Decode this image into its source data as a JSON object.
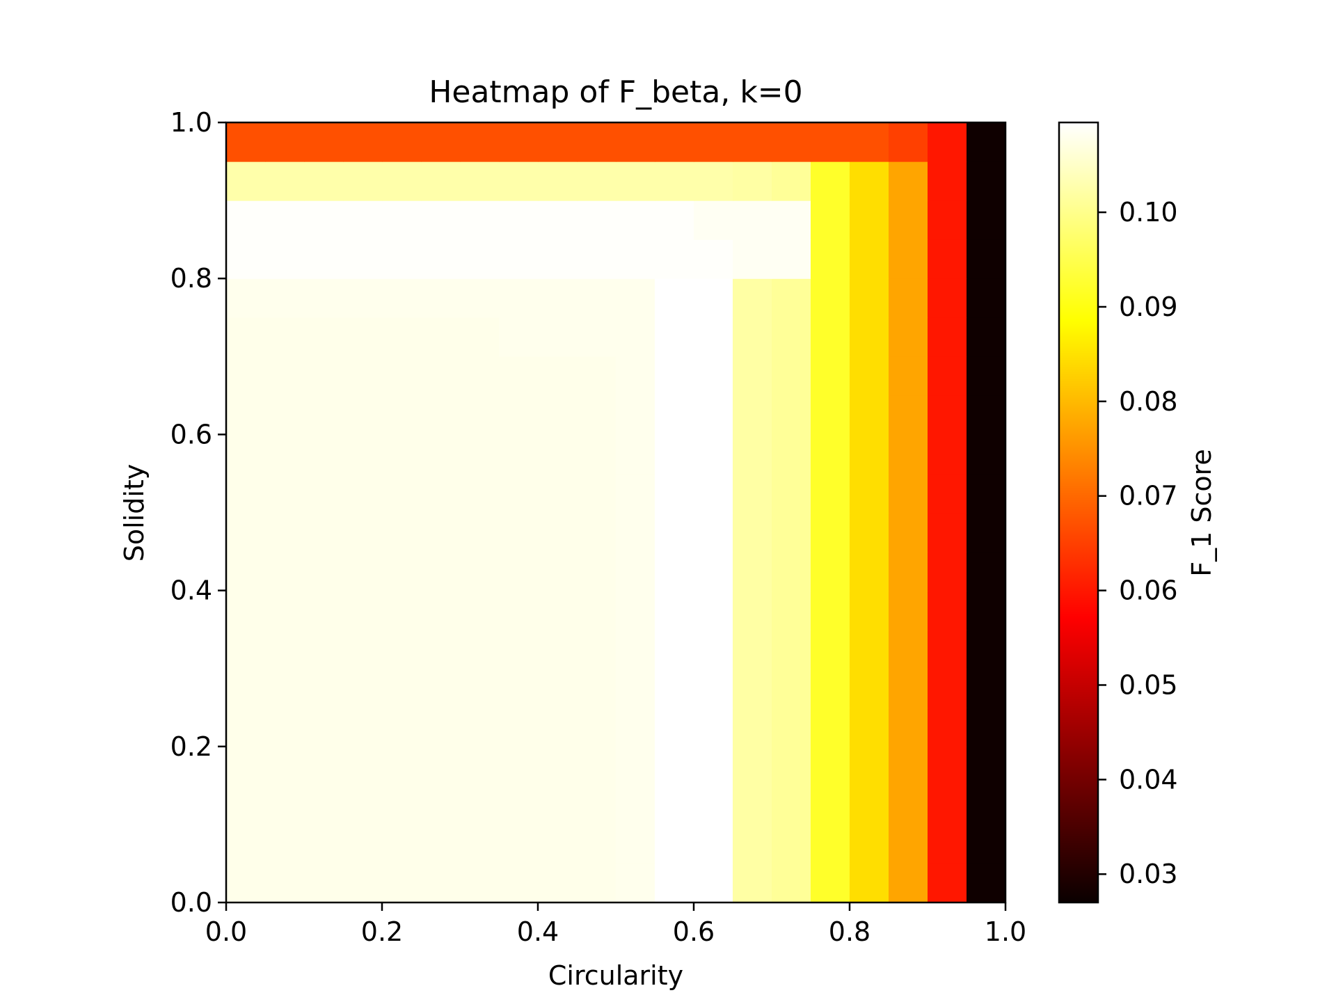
{
  "chart_data": {
    "type": "heatmap",
    "title": "Heatmap of F_beta, k=0",
    "xlabel": "Circularity",
    "ylabel": "Solidity",
    "colorbar_label": "F_1 Score",
    "colormap": "hot",
    "xlim": [
      0,
      1
    ],
    "ylim": [
      0,
      1
    ],
    "clim": [
      0.027,
      0.1095
    ],
    "x_edges": [
      0,
      0.05,
      0.1,
      0.15,
      0.2,
      0.25,
      0.3,
      0.35,
      0.4,
      0.45,
      0.5,
      0.55,
      0.6,
      0.65,
      0.7,
      0.75,
      0.8,
      0.85,
      0.9,
      0.95,
      1.0
    ],
    "y_edges": [
      0,
      0.05,
      0.1,
      0.15,
      0.2,
      0.25,
      0.3,
      0.35,
      0.4,
      0.45,
      0.5,
      0.55,
      0.6,
      0.65,
      0.7,
      0.75,
      0.8,
      0.85,
      0.9,
      0.95,
      1.0
    ],
    "x_ticks": [
      "0.0",
      "0.2",
      "0.4",
      "0.6",
      "0.8",
      "1.0"
    ],
    "y_ticks": [
      "0.0",
      "0.2",
      "0.4",
      "0.6",
      "0.8",
      "1.0"
    ],
    "colorbar_ticks": [
      "0.03",
      "0.04",
      "0.05",
      "0.06",
      "0.07",
      "0.08",
      "0.09",
      "0.10"
    ],
    "values": [
      [
        0.1078,
        0.1078,
        0.1078,
        0.1078,
        0.1078,
        0.1078,
        0.1078,
        0.1078,
        0.1078,
        0.1078,
        0.108,
        0.1095,
        0.1095,
        0.102,
        0.101,
        0.092,
        0.0845,
        0.0775,
        0.06,
        0.0275
      ],
      [
        0.1078,
        0.1078,
        0.1078,
        0.1078,
        0.1078,
        0.1078,
        0.1078,
        0.1078,
        0.1078,
        0.1078,
        0.108,
        0.1095,
        0.1095,
        0.102,
        0.101,
        0.092,
        0.0845,
        0.0775,
        0.06,
        0.0275
      ],
      [
        0.1078,
        0.1078,
        0.1078,
        0.1078,
        0.1078,
        0.1078,
        0.1078,
        0.1078,
        0.1078,
        0.1078,
        0.108,
        0.1095,
        0.1095,
        0.102,
        0.101,
        0.092,
        0.0845,
        0.0775,
        0.06,
        0.0275
      ],
      [
        0.1078,
        0.1078,
        0.1078,
        0.1078,
        0.1078,
        0.1078,
        0.1078,
        0.1078,
        0.1078,
        0.1078,
        0.108,
        0.1095,
        0.1095,
        0.102,
        0.101,
        0.092,
        0.0845,
        0.0775,
        0.06,
        0.0275
      ],
      [
        0.1078,
        0.1078,
        0.1078,
        0.1078,
        0.1078,
        0.1078,
        0.1078,
        0.1078,
        0.1078,
        0.1078,
        0.108,
        0.1095,
        0.1095,
        0.102,
        0.101,
        0.092,
        0.0845,
        0.0775,
        0.06,
        0.0275
      ],
      [
        0.1078,
        0.1078,
        0.1078,
        0.1078,
        0.1078,
        0.1078,
        0.1078,
        0.1078,
        0.1078,
        0.1078,
        0.108,
        0.1095,
        0.1095,
        0.102,
        0.101,
        0.092,
        0.0845,
        0.0775,
        0.06,
        0.0275
      ],
      [
        0.1078,
        0.1078,
        0.1078,
        0.1078,
        0.1078,
        0.1078,
        0.1078,
        0.1078,
        0.1078,
        0.1078,
        0.108,
        0.1095,
        0.1095,
        0.102,
        0.101,
        0.092,
        0.0845,
        0.0775,
        0.06,
        0.0275
      ],
      [
        0.1078,
        0.1078,
        0.1078,
        0.1078,
        0.1078,
        0.1078,
        0.1078,
        0.1078,
        0.1078,
        0.1078,
        0.108,
        0.1095,
        0.1095,
        0.102,
        0.101,
        0.092,
        0.0845,
        0.0775,
        0.06,
        0.0275
      ],
      [
        0.1078,
        0.1078,
        0.1078,
        0.1078,
        0.1078,
        0.1078,
        0.1078,
        0.1078,
        0.1078,
        0.1078,
        0.108,
        0.1095,
        0.1095,
        0.102,
        0.101,
        0.092,
        0.0845,
        0.0775,
        0.06,
        0.0275
      ],
      [
        0.1078,
        0.1078,
        0.1078,
        0.1078,
        0.1078,
        0.1078,
        0.1078,
        0.1078,
        0.1078,
        0.1078,
        0.108,
        0.1095,
        0.1095,
        0.102,
        0.101,
        0.092,
        0.0845,
        0.0775,
        0.06,
        0.0275
      ],
      [
        0.1078,
        0.1078,
        0.1078,
        0.1078,
        0.1078,
        0.1078,
        0.1078,
        0.1078,
        0.1078,
        0.1078,
        0.108,
        0.1095,
        0.1095,
        0.102,
        0.101,
        0.092,
        0.0845,
        0.0775,
        0.06,
        0.0275
      ],
      [
        0.1078,
        0.1078,
        0.1078,
        0.1078,
        0.1078,
        0.1078,
        0.1078,
        0.1078,
        0.1078,
        0.1078,
        0.108,
        0.1095,
        0.1095,
        0.102,
        0.101,
        0.092,
        0.0845,
        0.0775,
        0.06,
        0.0275
      ],
      [
        0.1078,
        0.1078,
        0.1078,
        0.1078,
        0.1078,
        0.1078,
        0.1078,
        0.1078,
        0.1078,
        0.1078,
        0.108,
        0.1095,
        0.1095,
        0.102,
        0.101,
        0.092,
        0.0845,
        0.0775,
        0.06,
        0.0275
      ],
      [
        0.1078,
        0.1078,
        0.1078,
        0.1078,
        0.1078,
        0.1078,
        0.1078,
        0.1078,
        0.1078,
        0.1078,
        0.108,
        0.1095,
        0.1095,
        0.102,
        0.101,
        0.092,
        0.0845,
        0.0775,
        0.06,
        0.0275
      ],
      [
        0.1078,
        0.1078,
        0.1078,
        0.1078,
        0.1078,
        0.1078,
        0.1078,
        0.108,
        0.108,
        0.108,
        0.108,
        0.1095,
        0.1095,
        0.102,
        0.101,
        0.092,
        0.0845,
        0.0775,
        0.06,
        0.0275
      ],
      [
        0.108,
        0.108,
        0.108,
        0.108,
        0.108,
        0.108,
        0.108,
        0.108,
        0.108,
        0.108,
        0.108,
        0.1095,
        0.1095,
        0.102,
        0.101,
        0.092,
        0.0845,
        0.0775,
        0.06,
        0.0275
      ],
      [
        0.1092,
        0.1092,
        0.1092,
        0.1092,
        0.1092,
        0.1092,
        0.1092,
        0.1092,
        0.1092,
        0.1092,
        0.1092,
        0.1092,
        0.1092,
        0.1085,
        0.1085,
        0.092,
        0.0845,
        0.0775,
        0.06,
        0.0275
      ],
      [
        0.1092,
        0.1092,
        0.1092,
        0.1092,
        0.1092,
        0.1092,
        0.1092,
        0.1092,
        0.1092,
        0.1092,
        0.1092,
        0.1092,
        0.1085,
        0.1085,
        0.1085,
        0.092,
        0.0845,
        0.0775,
        0.06,
        0.0275
      ],
      [
        0.1025,
        0.1025,
        0.1025,
        0.1025,
        0.1025,
        0.1025,
        0.1025,
        0.1025,
        0.1025,
        0.1025,
        0.1025,
        0.1025,
        0.1025,
        0.102,
        0.101,
        0.092,
        0.0845,
        0.0775,
        0.06,
        0.0275
      ],
      [
        0.067,
        0.067,
        0.067,
        0.067,
        0.067,
        0.067,
        0.067,
        0.067,
        0.067,
        0.067,
        0.067,
        0.067,
        0.067,
        0.067,
        0.067,
        0.067,
        0.067,
        0.065,
        0.06,
        0.0275
      ]
    ]
  }
}
